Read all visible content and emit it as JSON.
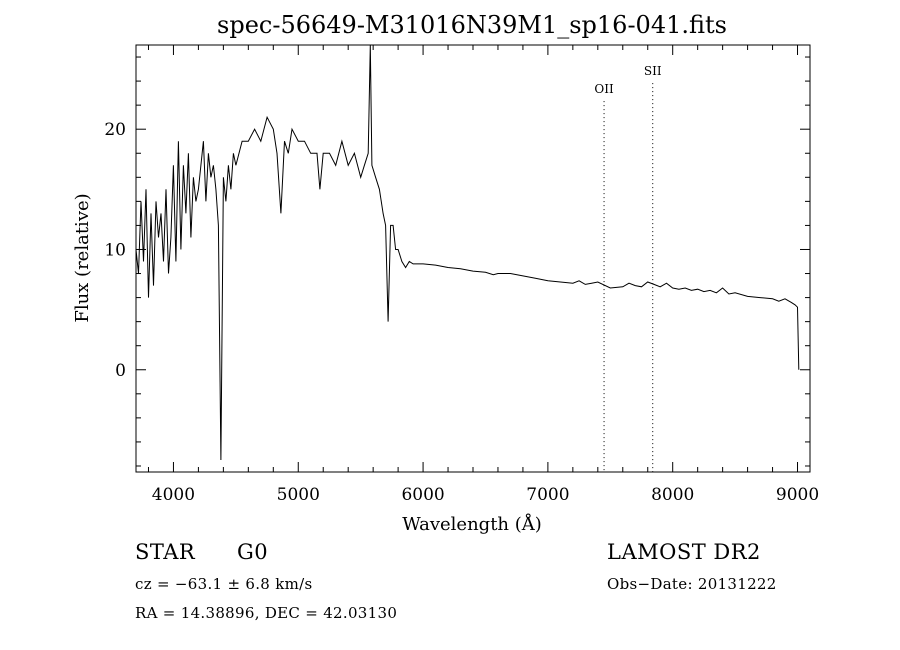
{
  "chart_data": {
    "type": "line",
    "title": "spec-56649-M31016N39M1_sp16-041.fits",
    "xlabel": "Wavelength (Å)",
    "ylabel": "Flux (relative)",
    "xlim": [
      3700,
      9100
    ],
    "ylim": [
      -8.5,
      27.0
    ],
    "x_ticks": [
      4000,
      5000,
      6000,
      7000,
      8000,
      9000
    ],
    "y_ticks": [
      0,
      10,
      20
    ],
    "series": [
      {
        "x": [
          3700,
          3720,
          3740,
          3760,
          3780,
          3800,
          3820,
          3840,
          3860,
          3880,
          3900,
          3920,
          3940,
          3960,
          3980,
          4000,
          4020,
          4040,
          4060,
          4080,
          4100,
          4120,
          4140,
          4160,
          4180,
          4200,
          4220,
          4240,
          4260,
          4280,
          4300,
          4320,
          4340,
          4360,
          4380,
          4400,
          4420,
          4440,
          4460,
          4480,
          4500,
          4550,
          4600,
          4650,
          4700,
          4750,
          4800,
          4830,
          4861,
          4890,
          4920,
          4950,
          5000,
          5050,
          5100,
          5150,
          5173,
          5200,
          5250,
          5300,
          5350,
          5400,
          5450,
          5500,
          5530,
          5560,
          5577,
          5590,
          5620,
          5650,
          5680,
          5700,
          5720,
          5740,
          5760,
          5780,
          5800,
          5830,
          5860,
          5890,
          5920,
          6000,
          6100,
          6200,
          6300,
          6400,
          6500,
          6563,
          6600,
          6700,
          6800,
          6900,
          7000,
          7100,
          7200,
          7250,
          7300,
          7350,
          7400,
          7500,
          7600,
          7650,
          7700,
          7750,
          7800,
          7850,
          7900,
          7950,
          8000,
          8050,
          8100,
          8150,
          8200,
          8250,
          8300,
          8350,
          8400,
          8450,
          8500,
          8600,
          8700,
          8800,
          8850,
          8900,
          8950,
          8980,
          9000,
          9010
        ],
        "y": [
          10,
          8,
          14,
          9,
          15,
          6,
          13,
          7,
          14,
          11,
          13,
          9,
          15,
          8,
          11,
          17,
          9,
          19,
          10,
          17,
          13,
          18,
          11,
          16,
          14,
          15,
          17,
          19,
          14,
          18,
          16,
          17,
          15,
          12,
          -7.5,
          16,
          14,
          17,
          15,
          18,
          17,
          19,
          19,
          20,
          19,
          21,
          20,
          18,
          13,
          19,
          18,
          20,
          19,
          19,
          18,
          18,
          15,
          18,
          18,
          17,
          19,
          17,
          18,
          16,
          17,
          18,
          27,
          17,
          16,
          15,
          13,
          12,
          4,
          12,
          12,
          10,
          10,
          9,
          8.5,
          9,
          8.8,
          8.8,
          8.7,
          8.5,
          8.4,
          8.2,
          8.1,
          7.9,
          8,
          8.0,
          7.8,
          7.6,
          7.4,
          7.3,
          7.2,
          7.4,
          7.1,
          7.2,
          7.3,
          6.8,
          6.9,
          7.2,
          7.0,
          6.9,
          7.3,
          7.1,
          6.9,
          7.2,
          6.8,
          6.7,
          6.8,
          6.6,
          6.7,
          6.5,
          6.6,
          6.4,
          6.8,
          6.3,
          6.4,
          6.1,
          6.0,
          5.9,
          5.7,
          5.9,
          5.6,
          5.4,
          5.2,
          0
        ]
      }
    ],
    "annotations": [
      {
        "label": "OII",
        "x": 7450,
        "y": 23
      },
      {
        "label": "SII",
        "x": 7840,
        "y": 24.5
      }
    ]
  },
  "info": {
    "object_class": "STAR",
    "subclass": "G0",
    "cz": "cz = −63.1 ± 6.8 km/s",
    "coords": "RA =  14.38896, DEC =  42.03130",
    "survey": "LAMOST DR2",
    "obs_date": "Obs−Date: 20131222"
  }
}
